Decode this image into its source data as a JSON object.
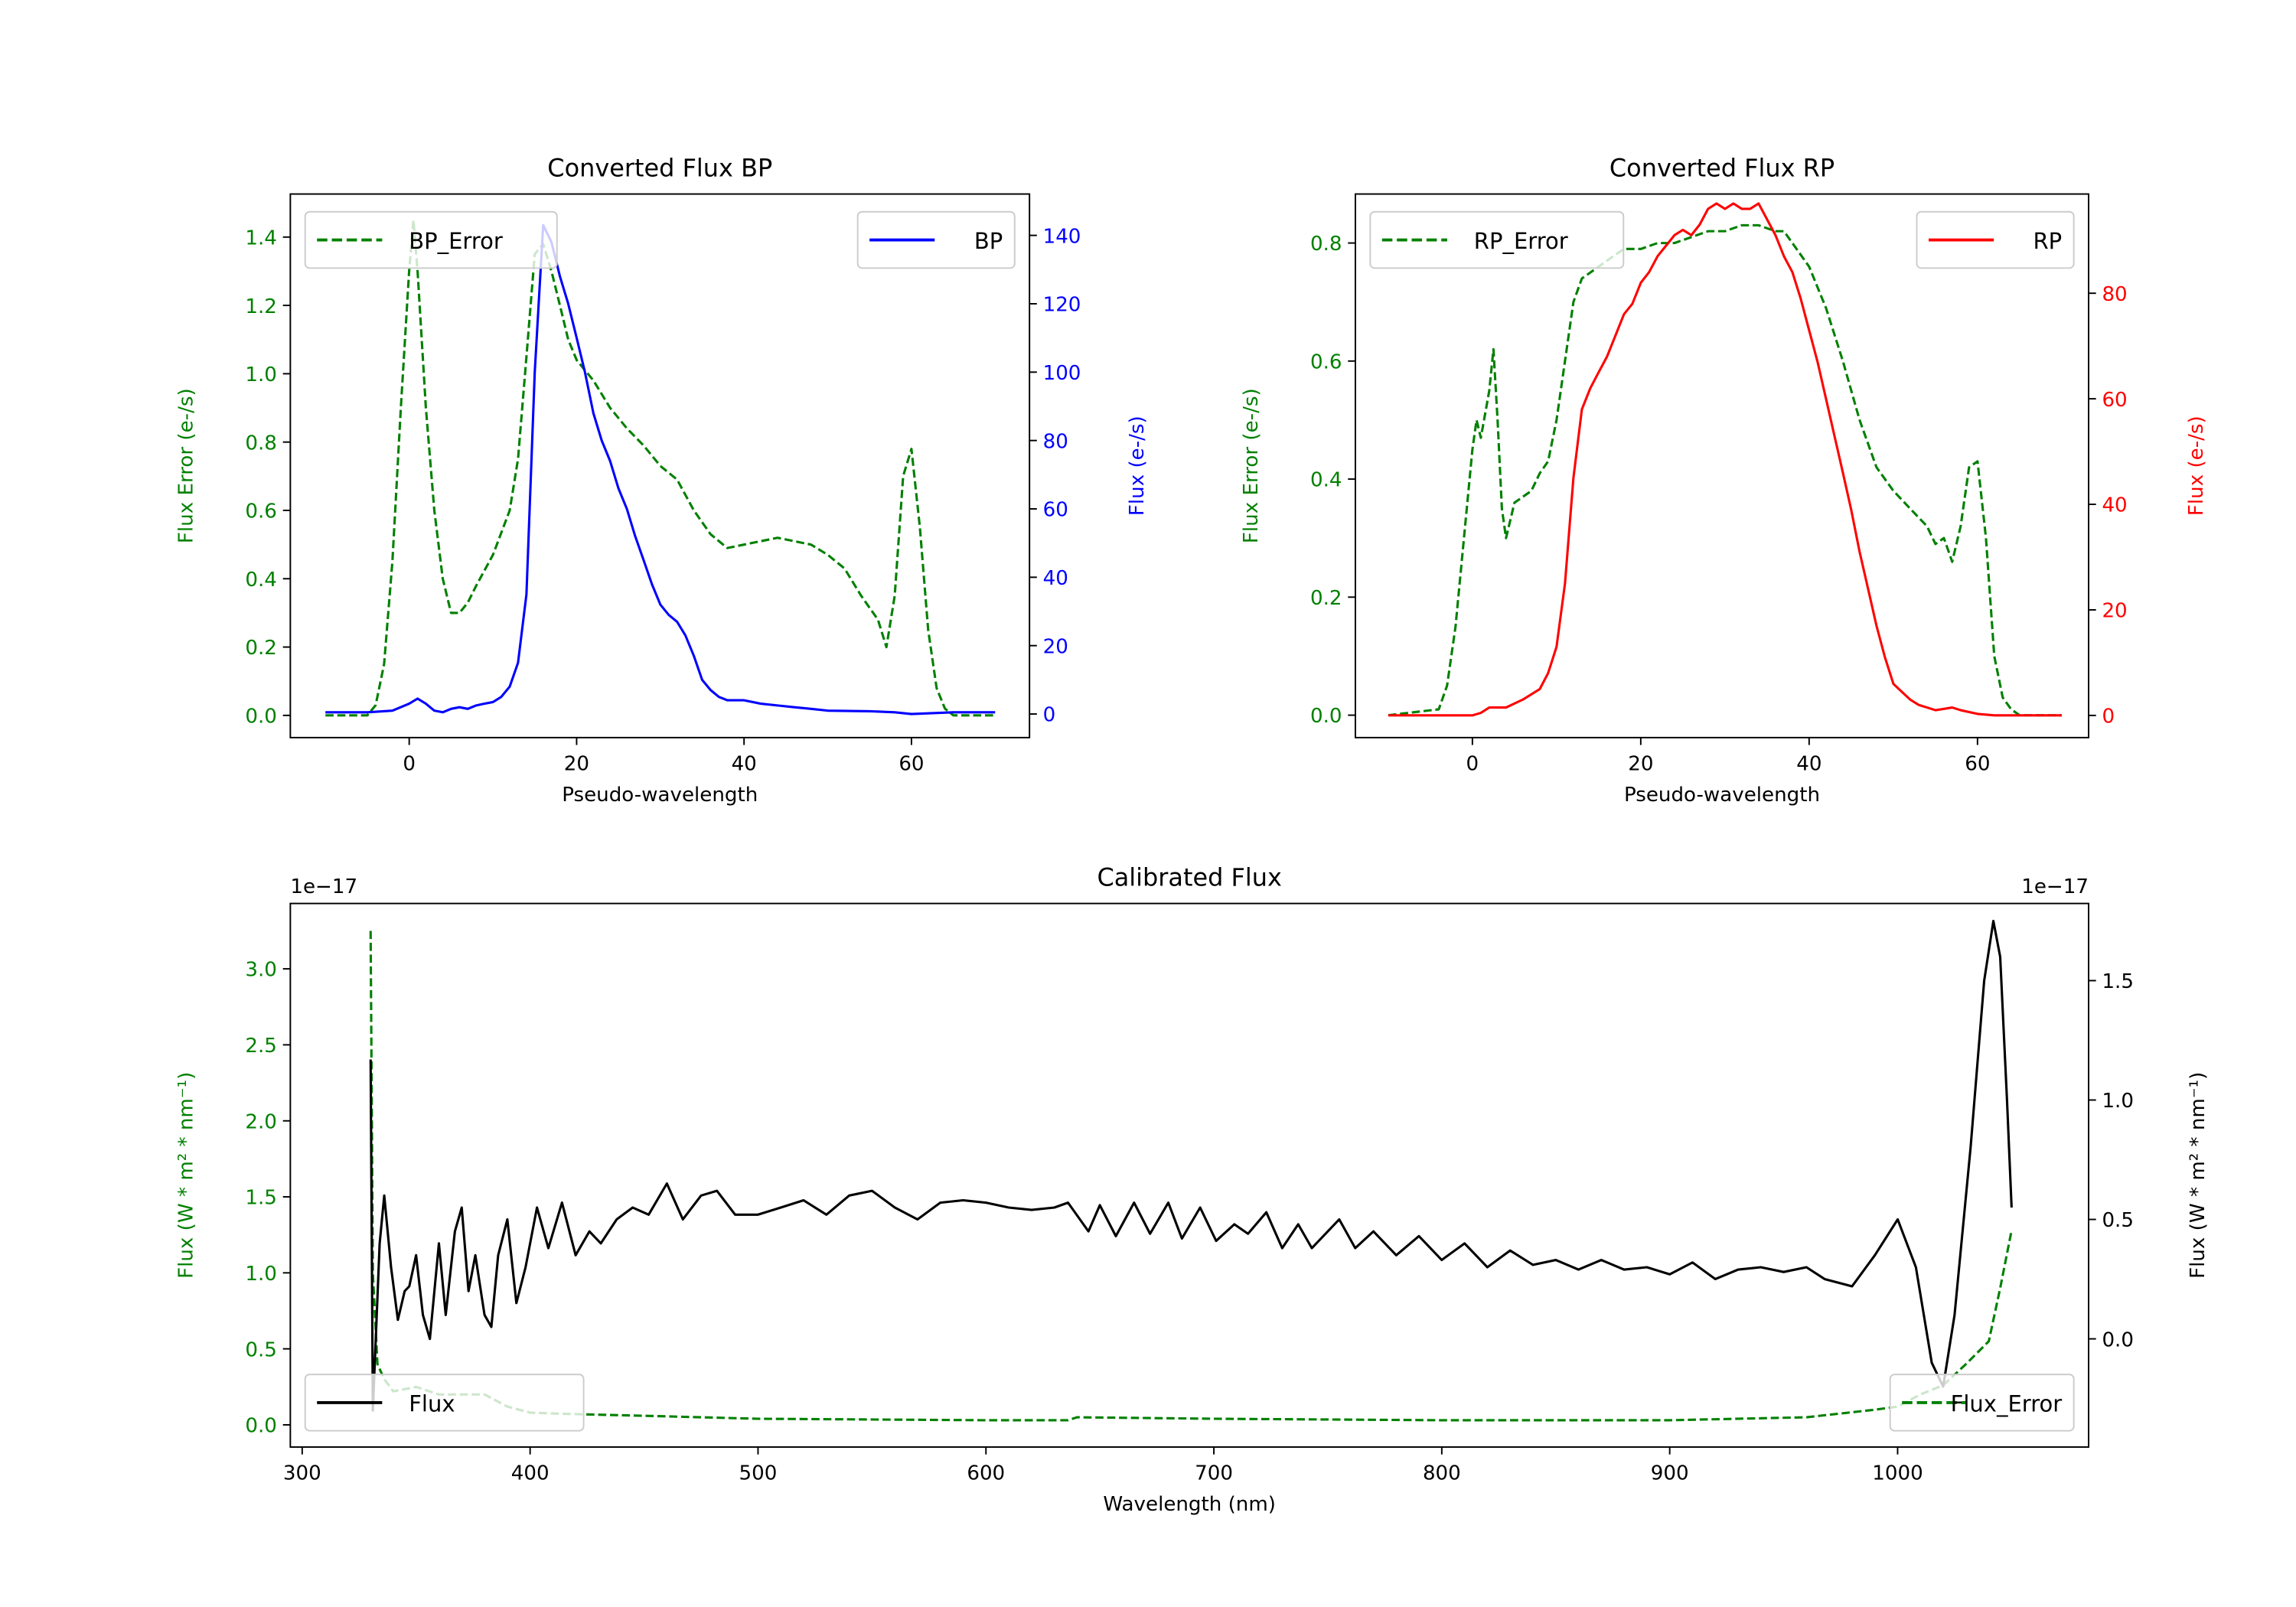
{
  "chart_data": [
    {
      "id": "bp",
      "type": "line",
      "title": "Converted Flux BP",
      "xlabel": "Pseudo-wavelength",
      "ylabel_left": "Flux Error (e-/s)",
      "ylabel_right": "Flux (e-/s)",
      "left_color": "#008000",
      "right_color": "#0000ff",
      "xlim": [
        -14.2,
        74.1
      ],
      "ylim_left": [
        -0.065,
        1.526
      ],
      "ylim_right": [
        -6.9,
        152.1
      ],
      "xticks": [
        0,
        20,
        40,
        60
      ],
      "xtick_labels": [
        "0",
        "20",
        "40",
        "60"
      ],
      "yticks_left": [
        0,
        0.2,
        0.4,
        0.6,
        0.8,
        1.0,
        1.2,
        1.4
      ],
      "ytick_labels_left": [
        "0.0",
        "0.2",
        "0.4",
        "0.6",
        "0.8",
        "1.0",
        "1.2",
        "1.4"
      ],
      "yticks_right": [
        0,
        20,
        40,
        60,
        80,
        100,
        120,
        140
      ],
      "ytick_labels_right": [
        "0",
        "20",
        "40",
        "60",
        "80",
        "100",
        "120",
        "140"
      ],
      "series": [
        {
          "name": "BP_Error",
          "axis": "left",
          "color": "#008000",
          "style": "dashed",
          "legend": "upper left",
          "x": [
            -10,
            -5,
            -4,
            -3,
            -2,
            -1,
            0,
            0.5,
            1,
            2,
            3,
            4,
            5,
            6,
            7,
            8,
            10,
            12,
            13,
            14,
            15,
            16,
            17,
            18,
            19,
            20,
            22,
            24,
            26,
            28,
            30,
            32,
            34,
            36,
            38,
            40,
            44,
            48,
            50,
            52,
            54,
            56,
            57,
            58,
            59,
            60,
            61,
            62,
            63,
            64,
            65,
            70
          ],
          "y": [
            0,
            0,
            0.03,
            0.15,
            0.45,
            0.9,
            1.3,
            1.45,
            1.3,
            0.9,
            0.6,
            0.4,
            0.3,
            0.3,
            0.33,
            0.38,
            0.47,
            0.6,
            0.75,
            1.05,
            1.35,
            1.38,
            1.3,
            1.2,
            1.1,
            1.04,
            0.98,
            0.9,
            0.84,
            0.79,
            0.73,
            0.69,
            0.6,
            0.53,
            0.49,
            0.5,
            0.52,
            0.5,
            0.47,
            0.43,
            0.35,
            0.28,
            0.2,
            0.35,
            0.7,
            0.78,
            0.55,
            0.25,
            0.08,
            0.02,
            0,
            0
          ]
        },
        {
          "name": "BP",
          "axis": "right",
          "color": "#0000ff",
          "style": "solid",
          "legend": "upper right",
          "x": [
            -10,
            -5,
            -2,
            0,
            1,
            2,
            3,
            4,
            5,
            6,
            7,
            8,
            9,
            10,
            11,
            12,
            13,
            14,
            15,
            16,
            17,
            18,
            19,
            20,
            21,
            22,
            23,
            24,
            25,
            26,
            27,
            28,
            29,
            30,
            31,
            32,
            33,
            34,
            35,
            36,
            37,
            38,
            40,
            42,
            44,
            46,
            48,
            50,
            55,
            58,
            60,
            65,
            70
          ],
          "y": [
            0.5,
            0.5,
            1,
            3,
            4.5,
            3,
            1,
            0.5,
            1.5,
            2,
            1.5,
            2.5,
            3,
            3.5,
            5,
            8,
            15,
            35,
            100,
            143,
            138,
            128,
            120,
            110,
            100,
            88,
            80,
            74,
            66,
            60,
            52,
            45,
            38,
            32,
            29,
            27,
            23,
            17,
            10,
            7,
            5,
            4,
            4,
            3,
            2.5,
            2,
            1.5,
            1,
            0.8,
            0.5,
            0,
            0.5,
            0.5
          ]
        }
      ]
    },
    {
      "id": "rp",
      "type": "line",
      "title": "Converted Flux RP",
      "xlabel": "Pseudo-wavelength",
      "ylabel_left": "Flux Error (e-/s)",
      "ylabel_right": "Flux (e-/s)",
      "left_color": "#008000",
      "right_color": "#ff0000",
      "xlim": [
        -13.9,
        73.2
      ],
      "ylim_left": [
        -0.038,
        0.883
      ],
      "ylim_right": [
        -4.2,
        98.8
      ],
      "xticks": [
        0,
        20,
        40,
        60
      ],
      "xtick_labels": [
        "0",
        "20",
        "40",
        "60"
      ],
      "yticks_left": [
        0,
        0.2,
        0.4,
        0.6,
        0.8
      ],
      "ytick_labels_left": [
        "0.0",
        "0.2",
        "0.4",
        "0.6",
        "0.8"
      ],
      "yticks_right": [
        0,
        20,
        40,
        60,
        80
      ],
      "ytick_labels_right": [
        "0",
        "20",
        "40",
        "60",
        "80"
      ],
      "series": [
        {
          "name": "RP_Error",
          "axis": "left",
          "color": "#008000",
          "style": "dashed",
          "legend": "upper left",
          "x": [
            -10,
            -4,
            -3,
            -2,
            -1,
            0,
            0.5,
            1,
            2,
            2.5,
            3,
            3.5,
            4,
            5,
            6,
            7,
            8,
            9,
            10,
            11,
            12,
            13,
            14,
            16,
            17,
            18,
            20,
            22,
            24,
            26,
            28,
            30,
            32,
            34,
            36,
            37,
            38,
            40,
            42,
            44,
            46,
            48,
            50,
            52,
            54,
            55,
            56,
            57,
            58,
            59,
            60,
            61,
            62,
            63,
            64,
            65,
            70
          ],
          "y": [
            0,
            0.01,
            0.05,
            0.15,
            0.3,
            0.45,
            0.5,
            0.47,
            0.55,
            0.62,
            0.5,
            0.35,
            0.3,
            0.36,
            0.37,
            0.38,
            0.41,
            0.43,
            0.5,
            0.6,
            0.7,
            0.74,
            0.75,
            0.77,
            0.78,
            0.79,
            0.79,
            0.8,
            0.8,
            0.81,
            0.82,
            0.82,
            0.83,
            0.83,
            0.82,
            0.82,
            0.8,
            0.76,
            0.69,
            0.6,
            0.5,
            0.42,
            0.38,
            0.35,
            0.32,
            0.29,
            0.3,
            0.26,
            0.32,
            0.42,
            0.43,
            0.3,
            0.1,
            0.03,
            0.01,
            0,
            0
          ]
        },
        {
          "name": "RP",
          "axis": "right",
          "color": "#ff0000",
          "style": "solid",
          "legend": "upper right",
          "x": [
            -10,
            0,
            1,
            2,
            4,
            6,
            8,
            9,
            10,
            11,
            12,
            13,
            14,
            15,
            16,
            17,
            18,
            19,
            20,
            21,
            22,
            23,
            24,
            25,
            26,
            27,
            28,
            29,
            30,
            31,
            32,
            33,
            34,
            35,
            36,
            37,
            38,
            39,
            40,
            41,
            42,
            43,
            44,
            45,
            46,
            47,
            48,
            49,
            50,
            51,
            52,
            53,
            54,
            55,
            57,
            58,
            60,
            62,
            70
          ],
          "y": [
            0,
            0,
            0.5,
            1.5,
            1.5,
            3,
            5,
            8,
            13,
            25,
            45,
            58,
            62,
            65,
            68,
            72,
            76,
            78,
            82,
            84,
            87,
            89,
            91,
            92,
            91,
            93,
            96,
            97,
            96,
            97,
            96,
            96,
            97,
            94,
            91,
            87,
            84,
            79,
            73,
            67,
            60,
            53,
            46,
            39,
            31,
            24,
            17,
            11,
            6,
            4.5,
            3,
            2,
            1.5,
            1,
            1.5,
            1,
            0.3,
            0,
            0
          ]
        }
      ]
    },
    {
      "id": "cal",
      "type": "line",
      "title": "Calibrated Flux",
      "xlabel": "Wavelength (nm)",
      "ylabel_left": "Flux (W * m² * nm⁻¹)",
      "ylabel_right": "Flux (W * m² * nm⁻¹)",
      "offset_left": "1e−17",
      "offset_right": "1e−17",
      "left_color": "#008000",
      "right_color": "#000000",
      "xlim": [
        294.8,
        1083.8
      ],
      "ylim_left": [
        -0.146,
        3.43
      ],
      "ylim_right": [
        -0.453,
        1.823
      ],
      "xticks": [
        300,
        400,
        500,
        600,
        700,
        800,
        900,
        1000
      ],
      "xtick_labels": [
        "300",
        "400",
        "500",
        "600",
        "700",
        "800",
        "900",
        "1000"
      ],
      "yticks_left": [
        0,
        0.5,
        1.0,
        1.5,
        2.0,
        2.5,
        3.0
      ],
      "ytick_labels_left": [
        "0.0",
        "0.5",
        "1.0",
        "1.5",
        "2.0",
        "2.5",
        "3.0"
      ],
      "yticks_right": [
        0,
        0.5,
        1.0,
        1.5
      ],
      "ytick_labels_right": [
        "0.0",
        "0.5",
        "1.0",
        "1.5"
      ],
      "series": [
        {
          "name": "Flux_Error",
          "axis": "left",
          "color": "#008000",
          "style": "dashed",
          "legend": "lower right",
          "x": [
            330,
            331,
            333,
            336,
            340,
            350,
            360,
            380,
            390,
            400,
            420,
            450,
            500,
            600,
            636,
            640,
            700,
            800,
            900,
            960,
            990,
            1000,
            1010,
            1020,
            1030,
            1040,
            1045,
            1050
          ],
          "y": [
            3.25,
            1.0,
            0.4,
            0.3,
            0.22,
            0.25,
            0.2,
            0.2,
            0.12,
            0.08,
            0.07,
            0.06,
            0.04,
            0.03,
            0.03,
            0.05,
            0.04,
            0.03,
            0.03,
            0.05,
            0.1,
            0.12,
            0.2,
            0.26,
            0.4,
            0.55,
            0.9,
            1.28
          ]
        },
        {
          "name": "Flux",
          "axis": "right",
          "color": "#000000",
          "style": "solid",
          "legend": "lower left",
          "x": [
            330,
            331,
            334,
            336,
            339,
            342,
            345,
            347,
            350,
            353,
            356,
            360,
            363,
            367,
            370,
            373,
            376,
            380,
            383,
            386,
            390,
            394,
            398,
            403,
            408,
            414,
            420,
            426,
            431,
            438,
            445,
            452,
            460,
            467,
            475,
            482,
            490,
            500,
            510,
            520,
            530,
            540,
            550,
            560,
            570,
            580,
            590,
            600,
            610,
            620,
            630,
            636,
            645,
            650,
            657,
            665,
            672,
            680,
            686,
            694,
            701,
            709,
            715,
            723,
            730,
            737,
            743,
            755,
            762,
            770,
            780,
            790,
            800,
            810,
            820,
            830,
            840,
            850,
            860,
            870,
            880,
            890,
            900,
            910,
            920,
            930,
            940,
            950,
            960,
            968,
            980,
            990,
            1000,
            1008,
            1015,
            1020,
            1025,
            1032,
            1038,
            1042,
            1045,
            1048,
            1050
          ],
          "y": [
            1.17,
            -0.3,
            0.4,
            0.6,
            0.3,
            0.08,
            0.2,
            0.22,
            0.35,
            0.1,
            0.0,
            0.4,
            0.1,
            0.45,
            0.55,
            0.2,
            0.35,
            0.1,
            0.05,
            0.35,
            0.5,
            0.15,
            0.3,
            0.55,
            0.38,
            0.57,
            0.35,
            0.45,
            0.4,
            0.5,
            0.55,
            0.52,
            0.65,
            0.5,
            0.6,
            0.62,
            0.52,
            0.52,
            0.55,
            0.58,
            0.52,
            0.6,
            0.62,
            0.55,
            0.5,
            0.57,
            0.58,
            0.57,
            0.55,
            0.54,
            0.55,
            0.57,
            0.45,
            0.56,
            0.43,
            0.57,
            0.44,
            0.57,
            0.42,
            0.55,
            0.41,
            0.48,
            0.44,
            0.53,
            0.38,
            0.48,
            0.38,
            0.5,
            0.38,
            0.45,
            0.35,
            0.43,
            0.33,
            0.4,
            0.3,
            0.37,
            0.31,
            0.33,
            0.29,
            0.33,
            0.29,
            0.3,
            0.27,
            0.32,
            0.25,
            0.29,
            0.3,
            0.28,
            0.3,
            0.25,
            0.22,
            0.35,
            0.5,
            0.3,
            -0.1,
            -0.2,
            0.1,
            0.8,
            1.5,
            1.75,
            1.6,
            1.0,
            0.55
          ]
        }
      ]
    }
  ]
}
